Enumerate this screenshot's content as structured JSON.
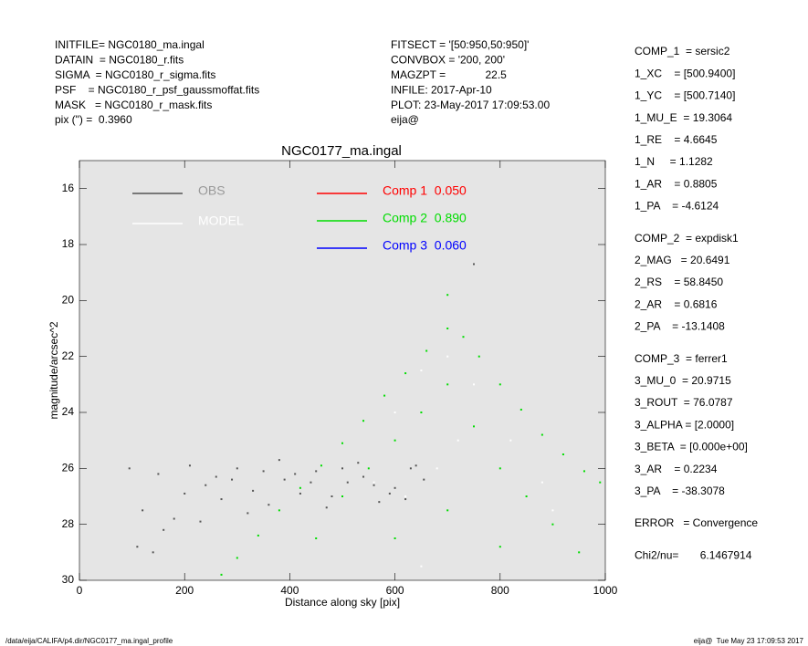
{
  "header": {
    "left": [
      "INITFILE= NGC0180_ma.ingal",
      "DATAIN  = NGC0180_r.fits",
      "SIGMA  = NGC0180_r_sigma.fits",
      "PSF    = NGC0180_r_psf_gaussmoffat.fits",
      "MASK   = NGC0180_r_mask.fits",
      "pix (\") =  0.3960"
    ],
    "middle": [
      "FITSECT = '[50:950,50:950]'",
      "CONVBOX = '200, 200'",
      "MAGZPT =             22.5",
      "INFILE: 2017-Apr-10",
      "PLOT: 23-May-2017 17:09:53.00",
      "eija@"
    ]
  },
  "params": [
    [
      "COMP_1  = sersic2",
      "1_XC    = [500.9400]",
      "1_YC    = [500.7140]",
      "1_MU_E  = 19.3064",
      "1_RE    = 4.6645",
      "1_N     = 1.1282",
      "1_AR    = 0.8805",
      "1_PA    = -4.6124"
    ],
    [
      "COMP_2  = expdisk1",
      "2_MAG   = 20.6491",
      "2_RS    = 58.8450",
      "2_AR    = 0.6816",
      "2_PA    = -13.1408"
    ],
    [
      "COMP_3  = ferrer1",
      "3_MU_0  = 20.9715",
      "3_ROUT  = 76.0787",
      "3_ALPHA = [2.0000]",
      "3_BETA  = [0.000e+00]",
      "3_AR    = 0.2234",
      "3_PA    = -38.3078"
    ],
    [
      "ERROR   = Convergence"
    ],
    [
      "Chi2/nu=       6.1467914"
    ]
  ],
  "footer": {
    "left": "/data/eija/CALIFA/p4.dir/NGC0177_ma.ingal_profile",
    "right": "eija@  Tue May 23 17:09:53 2017"
  },
  "chart_data": {
    "type": "scatter",
    "title": "NGC0177_ma.ingal",
    "x_label": "Distance along sky [pix]",
    "y_label": "magnitude/arcsec^2",
    "xlim": [
      0,
      1000
    ],
    "xticks": [
      0,
      200,
      400,
      600,
      800,
      1000
    ],
    "ylim": [
      30,
      15
    ],
    "yticks": [
      16,
      18,
      20,
      22,
      24,
      26,
      28,
      30
    ],
    "series": [
      {
        "name": "OBS",
        "color": "#555555",
        "x": [
          95,
          120,
          150,
          180,
          210,
          240,
          270,
          300,
          330,
          360,
          390,
          420,
          450,
          480,
          510,
          540,
          570,
          600,
          630,
          655,
          110,
          160,
          230,
          290,
          350,
          410,
          470,
          530,
          590,
          640,
          140,
          200,
          260,
          320,
          380,
          440,
          500,
          560,
          620,
          750
        ],
        "values": [
          26.0,
          27.5,
          26.2,
          27.8,
          25.9,
          26.6,
          27.1,
          26.0,
          26.8,
          27.3,
          26.4,
          26.9,
          26.1,
          27.0,
          26.5,
          26.3,
          27.2,
          26.7,
          26.0,
          26.4,
          28.8,
          28.2,
          27.9,
          26.4,
          26.1,
          26.2,
          27.4,
          25.8,
          26.9,
          25.9,
          29.0,
          26.9,
          26.3,
          27.6,
          25.7,
          26.5,
          26.0,
          26.6,
          27.1,
          18.7
        ]
      },
      {
        "name": "MODEL",
        "color": "#ffffff",
        "x": [
          600,
          650,
          700,
          750,
          720,
          680,
          620,
          560,
          820,
          880,
          900,
          650
        ],
        "values": [
          24.0,
          22.5,
          22.0,
          23.0,
          25.0,
          26.0,
          27.0,
          26.5,
          25.0,
          26.5,
          27.5,
          29.5
        ]
      },
      {
        "name": "Comp 1  0.050",
        "color": "#ff0000",
        "x": [],
        "values": []
      },
      {
        "name": "Comp 2  0.890",
        "color": "#00dd00",
        "x": [
          270,
          300,
          340,
          380,
          420,
          460,
          500,
          540,
          580,
          620,
          660,
          700,
          730,
          760,
          800,
          840,
          880,
          920,
          960,
          990,
          500,
          550,
          600,
          650,
          700,
          750,
          800,
          850,
          900,
          950,
          600,
          700,
          800,
          450,
          700
        ],
        "values": [
          29.8,
          29.2,
          28.4,
          27.5,
          26.7,
          25.9,
          25.1,
          24.3,
          23.4,
          22.6,
          21.8,
          21.0,
          21.3,
          22.0,
          23.0,
          23.9,
          24.8,
          25.5,
          26.1,
          26.5,
          27.0,
          26.0,
          25.0,
          24.0,
          23.0,
          24.5,
          26.0,
          27.0,
          28.0,
          29.0,
          28.5,
          27.5,
          28.8,
          28.5,
          19.8
        ]
      },
      {
        "name": "Comp 3  0.060",
        "color": "#0000ff",
        "x": [],
        "values": []
      }
    ]
  }
}
